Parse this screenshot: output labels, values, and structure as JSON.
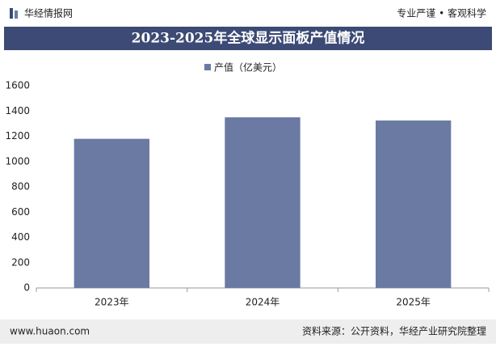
{
  "header": {
    "brand": "华经情报网",
    "slogan": "专业严谨 • 客观科学"
  },
  "chart_data": {
    "type": "bar",
    "title": "2023-2025年全球显示面板产值情况",
    "categories": [
      "2023年",
      "2024年",
      "2025年"
    ],
    "series": [
      {
        "name": "产值（亿美元）",
        "color": "#6b7aa3",
        "values": [
          1180,
          1350,
          1325
        ]
      }
    ],
    "ylim": [
      0,
      1600
    ],
    "yticks": [
      0,
      200,
      400,
      600,
      800,
      1000,
      1200,
      1400,
      1600
    ],
    "grid": false
  },
  "footer": {
    "website": "www.huaon.com",
    "source": "资料来源：公开资料，华经产业研究院整理"
  }
}
